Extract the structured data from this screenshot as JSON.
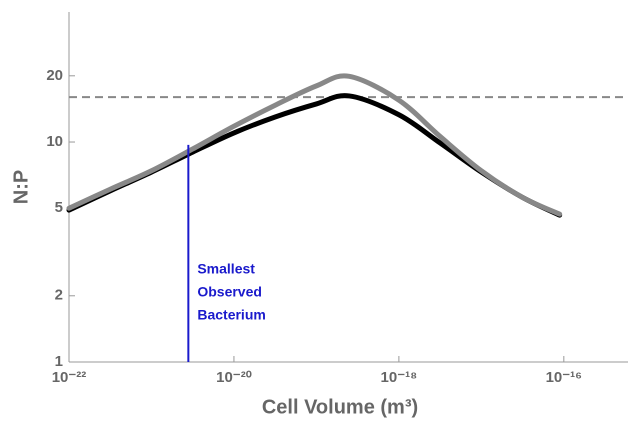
{
  "chart_data": {
    "type": "line",
    "xlabel": "Cell Volume (m³)",
    "ylabel": "N:P",
    "xscale": "log",
    "yscale": "log",
    "xlim": [
      1e-22,
      6e-16
    ],
    "ylim": [
      1,
      39
    ],
    "xticks": [
      {
        "value": 1e-22,
        "label": "10⁻²²"
      },
      {
        "value": 1e-20,
        "label": "10⁻²⁰"
      },
      {
        "value": 1e-18,
        "label": "10⁻¹⁸"
      },
      {
        "value": 1e-16,
        "label": "10⁻¹⁶"
      }
    ],
    "yticks": [
      1,
      2,
      5,
      10,
      20
    ],
    "series": [
      {
        "color": "#000000",
        "x": [
          1e-22,
          3.16e-22,
          1e-21,
          3.16e-21,
          1e-20,
          3.16e-20,
          1e-19,
          2.5e-19,
          1e-18,
          3.16e-18,
          1e-17,
          3.16e-17,
          8.9e-17
        ],
        "values": [
          4.9,
          6.0,
          7.3,
          9.0,
          11.0,
          13.0,
          14.9,
          16.2,
          13.3,
          9.9,
          7.3,
          5.6,
          4.65
        ]
      },
      {
        "color": "#888888",
        "x": [
          1e-22,
          3.16e-22,
          1e-21,
          3.16e-21,
          1e-20,
          3.16e-20,
          1e-19,
          2.5e-19,
          1e-18,
          3.16e-18,
          1e-17,
          3.16e-17,
          8.9e-17
        ],
        "values": [
          5.0,
          6.1,
          7.4,
          9.3,
          11.8,
          14.7,
          18.0,
          19.9,
          15.5,
          10.6,
          7.4,
          5.6,
          4.7
        ]
      }
    ],
    "hlines": [
      {
        "value": 16,
        "color": "#888888",
        "dash": true
      }
    ],
    "vlines": [
      {
        "x": 2.8e-21,
        "y_top": 9.7,
        "color": "#1a1acc"
      }
    ],
    "annotation": [
      "Smallest",
      "Observed",
      "Bacterium"
    ]
  }
}
